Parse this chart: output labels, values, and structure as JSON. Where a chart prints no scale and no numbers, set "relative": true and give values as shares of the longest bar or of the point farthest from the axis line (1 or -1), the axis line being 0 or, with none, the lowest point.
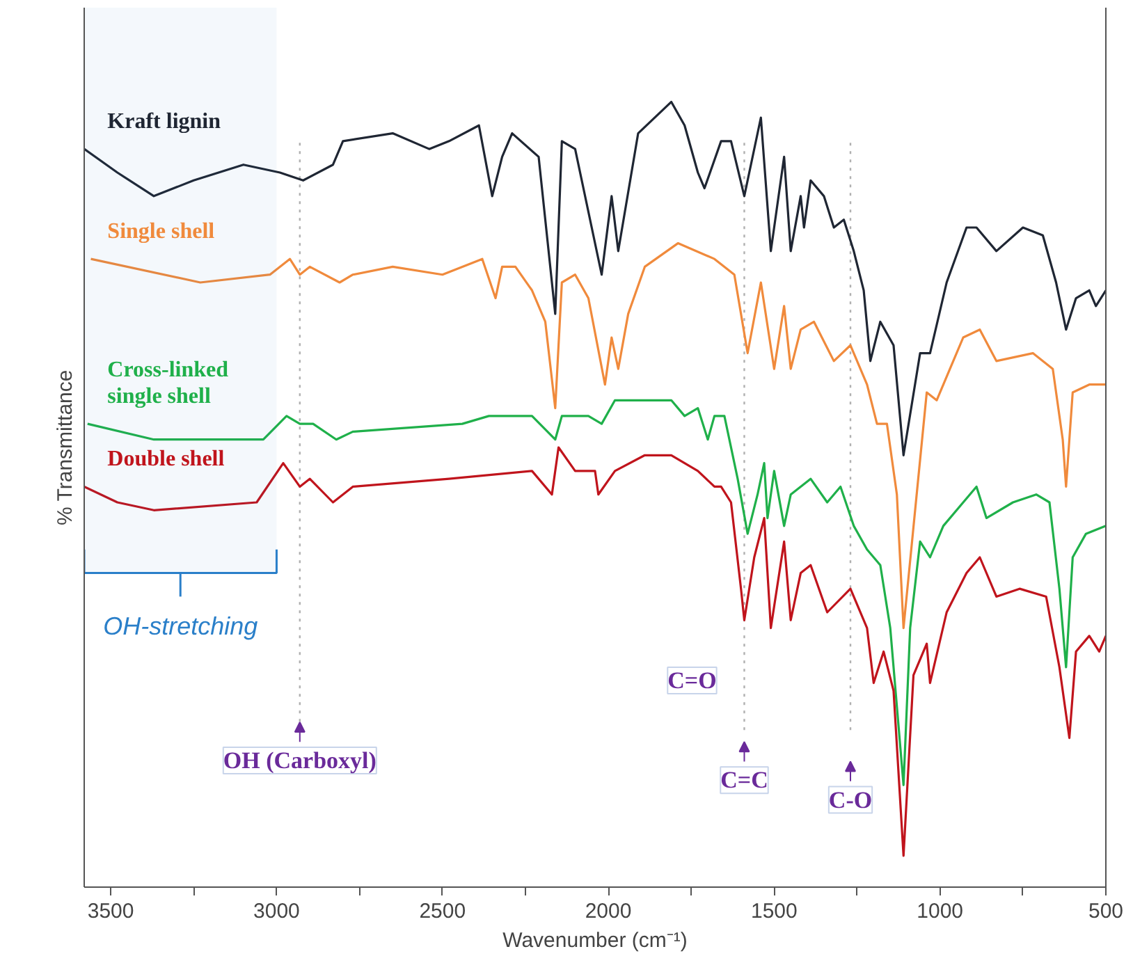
{
  "chart_data": {
    "type": "line",
    "relative": true,
    "xlabel": "Wavenumber (cm⁻¹)",
    "ylabel": "% Transmittance",
    "xlim": [
      3580,
      500
    ],
    "xticks": [
      3500,
      {
        "value": 3250,
        "label": null
      },
      3000,
      {
        "value": 2750,
        "label": null
      },
      2500,
      {
        "value": 2250,
        "label": null
      },
      2000,
      {
        "value": 1750,
        "label": null
      },
      1500,
      {
        "value": 1250,
        "label": null
      },
      1000,
      {
        "value": 750,
        "label": null
      },
      500
    ],
    "tick_labels": "x",
    "grid": false,
    "line_style": "solid",
    "marker": "none",
    "series": [
      {
        "name": "Kraft lignin",
        "color": "#1f2633",
        "x": [
          3580,
          3480,
          3370,
          3250,
          3100,
          2990,
          2920,
          2830,
          2800,
          2650,
          2540,
          2480,
          2390,
          2350,
          2320,
          2290,
          2210,
          2160,
          2140,
          2100,
          2020,
          1990,
          1970,
          1910,
          1810,
          1770,
          1730,
          1710,
          1660,
          1630,
          1590,
          1540,
          1510,
          1470,
          1450,
          1420,
          1410,
          1390,
          1350,
          1320,
          1290,
          1260,
          1230,
          1210,
          1180,
          1140,
          1110,
          1060,
          1030,
          980,
          920,
          890,
          830,
          750,
          690,
          650,
          620,
          590,
          550,
          530,
          500
        ],
        "values": [
          0.94,
          0.91,
          0.88,
          0.9,
          0.92,
          0.91,
          0.9,
          0.92,
          0.95,
          0.96,
          0.94,
          0.95,
          0.97,
          0.88,
          0.93,
          0.96,
          0.93,
          0.73,
          0.95,
          0.94,
          0.78,
          0.88,
          0.81,
          0.96,
          1.0,
          0.97,
          0.91,
          0.89,
          0.95,
          0.95,
          0.88,
          0.98,
          0.81,
          0.93,
          0.81,
          0.88,
          0.84,
          0.9,
          0.88,
          0.84,
          0.85,
          0.81,
          0.76,
          0.67,
          0.72,
          0.69,
          0.55,
          0.68,
          0.68,
          0.77,
          0.84,
          0.84,
          0.81,
          0.84,
          0.83,
          0.77,
          0.71,
          0.75,
          0.76,
          0.74,
          0.76
        ]
      },
      {
        "name": "Single shell",
        "color": "#f08a3c",
        "x": [
          3560,
          3230,
          3020,
          2960,
          2930,
          2900,
          2810,
          2770,
          2650,
          2500,
          2380,
          2340,
          2320,
          2280,
          2230,
          2190,
          2160,
          2140,
          2100,
          2060,
          2010,
          1990,
          1970,
          1940,
          1890,
          1790,
          1680,
          1620,
          1580,
          1540,
          1500,
          1470,
          1450,
          1420,
          1380,
          1320,
          1270,
          1220,
          1190,
          1160,
          1130,
          1110,
          1040,
          1010,
          970,
          930,
          880,
          830,
          720,
          660,
          630,
          620,
          600,
          550,
          500
        ],
        "values": [
          0.8,
          0.77,
          0.78,
          0.8,
          0.78,
          0.79,
          0.77,
          0.78,
          0.79,
          0.78,
          0.8,
          0.75,
          0.79,
          0.79,
          0.76,
          0.72,
          0.61,
          0.77,
          0.78,
          0.75,
          0.64,
          0.7,
          0.66,
          0.73,
          0.79,
          0.82,
          0.8,
          0.78,
          0.68,
          0.77,
          0.66,
          0.74,
          0.66,
          0.71,
          0.72,
          0.67,
          0.69,
          0.64,
          0.59,
          0.59,
          0.5,
          0.33,
          0.63,
          0.62,
          0.66,
          0.7,
          0.71,
          0.67,
          0.68,
          0.66,
          0.57,
          0.51,
          0.63,
          0.64,
          0.64
        ]
      },
      {
        "name": "Cross-linked\nsingle shell",
        "color": "#1fb04a",
        "x": [
          3570,
          3370,
          3040,
          2970,
          2930,
          2890,
          2820,
          2770,
          2440,
          2360,
          2230,
          2160,
          2140,
          2060,
          2020,
          1980,
          1890,
          1810,
          1770,
          1730,
          1700,
          1680,
          1650,
          1610,
          1580,
          1550,
          1530,
          1520,
          1500,
          1470,
          1450,
          1390,
          1340,
          1300,
          1260,
          1220,
          1180,
          1150,
          1110,
          1090,
          1060,
          1030,
          990,
          930,
          890,
          860,
          780,
          710,
          670,
          640,
          620,
          600,
          560,
          500
        ],
        "values": [
          0.59,
          0.57,
          0.57,
          0.6,
          0.59,
          0.59,
          0.57,
          0.58,
          0.59,
          0.6,
          0.6,
          0.57,
          0.6,
          0.6,
          0.59,
          0.62,
          0.62,
          0.62,
          0.6,
          0.61,
          0.57,
          0.6,
          0.6,
          0.52,
          0.45,
          0.5,
          0.54,
          0.47,
          0.53,
          0.46,
          0.5,
          0.52,
          0.49,
          0.51,
          0.46,
          0.43,
          0.41,
          0.33,
          0.13,
          0.33,
          0.44,
          0.42,
          0.46,
          0.49,
          0.51,
          0.47,
          0.49,
          0.5,
          0.49,
          0.38,
          0.28,
          0.42,
          0.45,
          0.46
        ]
      },
      {
        "name": "Double shell",
        "color": "#c0141c",
        "x": [
          3580,
          3480,
          3370,
          3060,
          2980,
          2930,
          2900,
          2830,
          2770,
          2480,
          2230,
          2170,
          2150,
          2100,
          2040,
          2030,
          1980,
          1890,
          1810,
          1730,
          1680,
          1660,
          1630,
          1600,
          1590,
          1560,
          1530,
          1510,
          1470,
          1450,
          1420,
          1390,
          1340,
          1270,
          1220,
          1200,
          1170,
          1140,
          1110,
          1080,
          1040,
          1030,
          980,
          920,
          880,
          830,
          760,
          680,
          640,
          610,
          590,
          550,
          520,
          500
        ],
        "values": [
          0.51,
          0.49,
          0.48,
          0.49,
          0.54,
          0.51,
          0.52,
          0.49,
          0.51,
          0.52,
          0.53,
          0.5,
          0.56,
          0.53,
          0.53,
          0.5,
          0.53,
          0.55,
          0.55,
          0.53,
          0.51,
          0.51,
          0.49,
          0.38,
          0.34,
          0.42,
          0.47,
          0.33,
          0.44,
          0.34,
          0.4,
          0.41,
          0.35,
          0.38,
          0.33,
          0.26,
          0.3,
          0.25,
          0.04,
          0.27,
          0.31,
          0.26,
          0.35,
          0.4,
          0.42,
          0.37,
          0.38,
          0.37,
          0.28,
          0.19,
          0.3,
          0.32,
          0.3,
          0.32
        ]
      }
    ],
    "ref_lines": [
      {
        "axis": "x",
        "value": 2930,
        "label": "OH (Carboxyl)",
        "line_style": "dotted",
        "color": "#b0b0b0"
      },
      {
        "axis": "x",
        "value": 1590,
        "label": "C=C",
        "line_style": "dotted",
        "color": "#b0b0b0"
      },
      {
        "axis": "x",
        "value": 1270,
        "label": "C-O",
        "line_style": "dotted",
        "color": "#b0b0b0"
      }
    ],
    "bands": [
      {
        "axis": "x",
        "from": 3580,
        "to": 3000,
        "label": "OH-stretching",
        "color": "#2a7fc9"
      }
    ],
    "annotations": [
      "C=O"
    ]
  }
}
